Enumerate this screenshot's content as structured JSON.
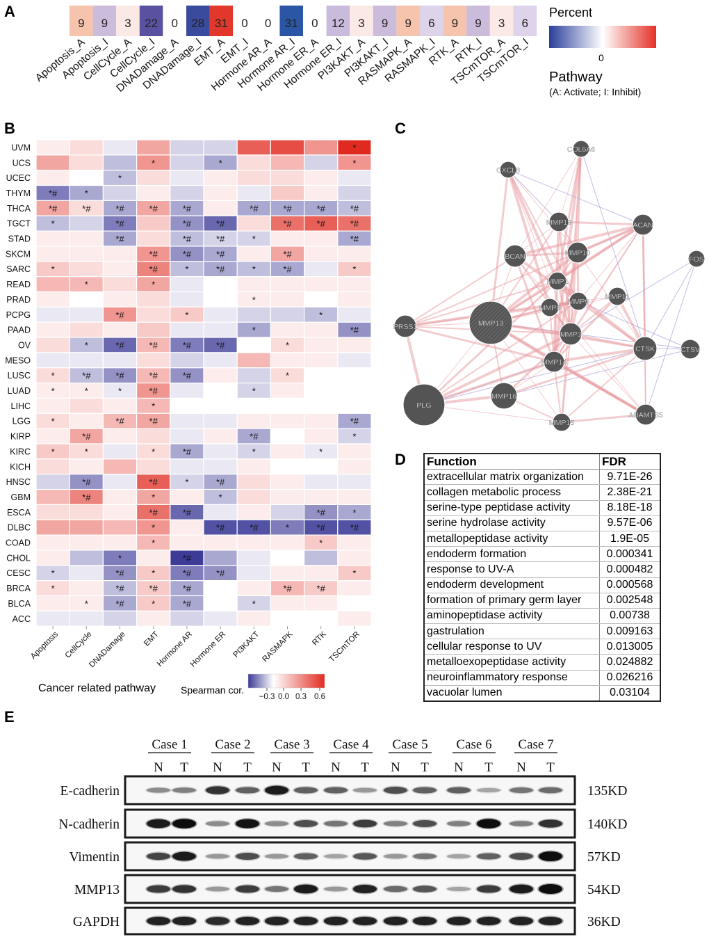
{
  "panels": {
    "A": "A",
    "B": "B",
    "C": "C",
    "D": "D",
    "E": "E"
  },
  "panel_a": {
    "labels": [
      "Apoptosis_A",
      "Apoptosis_I",
      "CellCycle_A",
      "CellCycle_I",
      "DNADamage_A",
      "DNADamage_I",
      "EMT_A",
      "EMT_I",
      "Hormone AR_A",
      "Hormone AR_I",
      "Hormone ER_A",
      "Hormone ER_I",
      "PI3KAKT_A",
      "PI3KAKT_I",
      "RASMAPK_A",
      "RASMAPK_I",
      "RTK_A",
      "RTK_I",
      "TSCmTOR_A",
      "TSCmTOR_I"
    ],
    "values": [
      9,
      9,
      3,
      22,
      0,
      28,
      31,
      0,
      0,
      31,
      0,
      12,
      3,
      9,
      9,
      6,
      9,
      9,
      3,
      6
    ],
    "colors": [
      "#f6c4ad",
      "#cbbcdc",
      "#fbe9e6",
      "#5a52a0",
      "#ffffff",
      "#3a4a9c",
      "#e2372b",
      "#ffffff",
      "#ffffff",
      "#2b55a5",
      "#ffffff",
      "#c9bbdc",
      "#fbe9e6",
      "#cbbcdc",
      "#f6c4ad",
      "#ddd3ea",
      "#f6c4ad",
      "#cbbcdc",
      "#fbe9e6",
      "#ddd3ea"
    ],
    "legend_title": "Percent",
    "legend_zero": "0",
    "pathway_title": "Pathway",
    "pathway_note": "(A: Activate; I: Inhibit)"
  },
  "panel_b": {
    "rows": [
      "UVM",
      "UCS",
      "UCEC",
      "THYM",
      "THCA",
      "TGCT",
      "STAD",
      "SKCM",
      "SARC",
      "READ",
      "PRAD",
      "PCPG",
      "PAAD",
      "OV",
      "MESO",
      "LUSC",
      "LUAD",
      "LIHC",
      "LGG",
      "KIRP",
      "KIRC",
      "KICH",
      "HNSC",
      "GBM",
      "ESCA",
      "DLBC",
      "COAD",
      "CHOL",
      "CESC",
      "BRCA",
      "BLCA",
      "ACC"
    ],
    "cols": [
      "Apoptosis",
      "CellCycle",
      "DNADamage",
      "EMT",
      "Hormone AR",
      "Hormone ER",
      "PI3KAKT",
      "RASMAPK",
      "RTK",
      "TSCmTOR"
    ],
    "values": [
      [
        0.05,
        0.1,
        -0.05,
        0.25,
        -0.1,
        -0.1,
        0.45,
        0.5,
        0.3,
        0.6
      ],
      [
        0.25,
        0.1,
        -0.15,
        0.3,
        -0.1,
        -0.2,
        0.1,
        0.2,
        -0.1,
        0.3
      ],
      [
        0.05,
        0.0,
        -0.15,
        0.1,
        -0.05,
        0.05,
        0.1,
        0.1,
        0.05,
        -0.05
      ],
      [
        -0.3,
        -0.2,
        -0.1,
        0.05,
        -0.1,
        0.05,
        -0.05,
        0.15,
        0.05,
        -0.1
      ],
      [
        0.25,
        0.1,
        -0.2,
        0.25,
        -0.2,
        0.05,
        -0.2,
        -0.2,
        -0.2,
        -0.15
      ],
      [
        -0.15,
        -0.1,
        -0.3,
        0.15,
        -0.25,
        -0.35,
        0.1,
        0.4,
        0.45,
        0.4
      ],
      [
        0.05,
        0.05,
        -0.2,
        0.1,
        -0.15,
        -0.1,
        -0.1,
        0.05,
        0.05,
        -0.2
      ],
      [
        0.05,
        0.05,
        0.05,
        0.3,
        -0.25,
        -0.2,
        0.05,
        0.25,
        0.05,
        0.05
      ],
      [
        0.15,
        0.1,
        0.05,
        0.35,
        -0.15,
        -0.2,
        -0.15,
        -0.2,
        -0.05,
        0.15
      ],
      [
        0.2,
        0.2,
        0.1,
        0.25,
        -0.05,
        0.0,
        0.05,
        0.05,
        0.05,
        0.05
      ],
      [
        0.05,
        0.0,
        0.05,
        0.1,
        -0.05,
        0.0,
        0.05,
        0.05,
        0.0,
        0.05
      ],
      [
        -0.05,
        -0.05,
        0.3,
        0.1,
        0.15,
        -0.05,
        -0.1,
        -0.1,
        -0.15,
        -0.05
      ],
      [
        0.05,
        0.1,
        0.05,
        0.15,
        -0.05,
        -0.05,
        -0.2,
        0.05,
        0.05,
        -0.25
      ],
      [
        0.1,
        -0.15,
        -0.35,
        0.2,
        -0.3,
        -0.35,
        0.0,
        0.1,
        0.05,
        0.05
      ],
      [
        -0.05,
        -0.05,
        -0.05,
        0.1,
        -0.1,
        -0.05,
        0.2,
        0.05,
        0.05,
        -0.05
      ],
      [
        0.1,
        -0.15,
        -0.25,
        0.2,
        -0.25,
        0.05,
        -0.1,
        0.1,
        0.0,
        0.0
      ],
      [
        0.05,
        0.05,
        -0.05,
        0.3,
        -0.05,
        0.0,
        -0.1,
        0.05,
        0.0,
        0.0
      ],
      [
        0.05,
        0.1,
        0.05,
        0.2,
        0.0,
        0.0,
        0.0,
        0.0,
        0.0,
        0.0
      ],
      [
        0.1,
        0.05,
        0.2,
        0.25,
        -0.05,
        -0.05,
        0.05,
        0.05,
        0.05,
        -0.2
      ],
      [
        0.05,
        0.25,
        0.05,
        0.1,
        -0.05,
        0.05,
        -0.2,
        0.0,
        0.05,
        -0.1
      ],
      [
        0.15,
        0.1,
        -0.05,
        0.1,
        -0.2,
        -0.05,
        -0.1,
        0.05,
        -0.05,
        0.05
      ],
      [
        0.1,
        0.05,
        0.2,
        0.1,
        -0.05,
        -0.05,
        0.05,
        0.0,
        0.0,
        0.05
      ],
      [
        -0.1,
        -0.25,
        -0.05,
        0.45,
        -0.1,
        -0.2,
        0.1,
        0.05,
        -0.05,
        -0.05
      ],
      [
        0.2,
        0.35,
        0.05,
        0.25,
        0.05,
        -0.15,
        0.1,
        0.05,
        0.05,
        0.05
      ],
      [
        0.1,
        0.1,
        0.05,
        0.4,
        -0.35,
        -0.05,
        0.05,
        -0.1,
        -0.25,
        -0.2
      ],
      [
        0.25,
        0.25,
        0.2,
        0.3,
        0.05,
        -0.4,
        -0.4,
        -0.3,
        -0.4,
        -0.4
      ],
      [
        0.05,
        0.05,
        0.05,
        0.2,
        0.05,
        0.05,
        0.05,
        0.05,
        0.15,
        0.05
      ],
      [
        0.05,
        -0.15,
        -0.3,
        0.05,
        -0.45,
        -0.2,
        -0.05,
        0.0,
        -0.15,
        0.05
      ],
      [
        -0.1,
        -0.05,
        -0.25,
        0.15,
        -0.3,
        -0.25,
        -0.05,
        0.05,
        0.05,
        0.15
      ],
      [
        0.1,
        0.05,
        -0.15,
        0.15,
        -0.2,
        0.0,
        0.05,
        0.2,
        0.15,
        0.05
      ],
      [
        0.05,
        0.05,
        -0.2,
        0.15,
        -0.2,
        0.0,
        -0.1,
        0.05,
        0.05,
        0.0
      ],
      [
        -0.05,
        -0.05,
        -0.1,
        0.05,
        -0.1,
        -0.05,
        0.05,
        0.0,
        0.0,
        0.05
      ]
    ],
    "marks": [
      [
        "",
        "",
        "",
        "",
        "",
        "",
        "",
        "",
        "",
        "*"
      ],
      [
        "",
        "",
        "",
        "*",
        "",
        "*",
        "",
        "",
        "",
        "*"
      ],
      [
        "",
        "",
        "*",
        "",
        "",
        "",
        "",
        "",
        "",
        ""
      ],
      [
        "*#",
        "*",
        "",
        "",
        "",
        "",
        "",
        "",
        "",
        ""
      ],
      [
        "*#",
        "*#",
        "*#",
        "*#",
        "*#",
        "",
        "*#",
        "*#",
        "*#",
        "*#"
      ],
      [
        "*",
        "",
        "*#",
        "",
        "*#",
        "*#",
        "",
        "*#",
        "*#",
        "*#"
      ],
      [
        "",
        "",
        "*#",
        "",
        "*#",
        "*#",
        "*",
        "",
        "",
        "*#"
      ],
      [
        "",
        "",
        "",
        "*#",
        "*#",
        "*#",
        "",
        "*#",
        "",
        ""
      ],
      [
        "*",
        "",
        "",
        "*#",
        "*",
        "*#",
        "*",
        "*#",
        "",
        "*"
      ],
      [
        "",
        "*",
        "",
        "*",
        "",
        "",
        "",
        "",
        "",
        ""
      ],
      [
        "",
        "",
        "",
        "",
        "",
        "",
        "*",
        "",
        "",
        ""
      ],
      [
        "",
        "",
        "*#",
        "",
        "*",
        "",
        "",
        "",
        "*",
        ""
      ],
      [
        "",
        "",
        "",
        "",
        "",
        "",
        "*",
        "",
        "",
        "*#"
      ],
      [
        "",
        "*",
        "*#",
        "*#",
        "*#",
        "*#",
        "",
        "*",
        "",
        ""
      ],
      [
        "",
        "",
        "",
        "",
        "",
        "",
        "",
        "",
        "",
        ""
      ],
      [
        "*",
        "*#",
        "*#",
        "*#",
        "*#",
        "",
        "",
        "*",
        "",
        ""
      ],
      [
        "*",
        "*",
        "*",
        "*#",
        "",
        "",
        "*",
        "",
        "",
        ""
      ],
      [
        "",
        "",
        "",
        "*",
        "",
        "",
        "",
        "",
        "",
        ""
      ],
      [
        "*",
        "",
        "*#",
        "*#",
        "",
        "",
        "",
        "",
        "",
        "*#"
      ],
      [
        "",
        "*#",
        "",
        "",
        "",
        "",
        "*#",
        "",
        "",
        "*"
      ],
      [
        "*",
        "*",
        "",
        "*",
        "*#",
        "",
        "*",
        "",
        "*",
        ""
      ],
      [
        "",
        "",
        "",
        "",
        "",
        "",
        "",
        "",
        "",
        ""
      ],
      [
        "",
        "*#",
        "",
        "*#",
        "*",
        "*#",
        "",
        "",
        "",
        ""
      ],
      [
        "",
        "*#",
        "",
        "*",
        "",
        "*",
        "",
        "",
        "",
        ""
      ],
      [
        "",
        "",
        "",
        "*#",
        "*#",
        "",
        "",
        "",
        "*#",
        "*"
      ],
      [
        "",
        "",
        "",
        "*",
        "",
        "*#",
        "*#",
        "*",
        "*#",
        "*#"
      ],
      [
        "",
        "",
        "",
        "*",
        "",
        "",
        "",
        "",
        "*",
        ""
      ],
      [
        "",
        "",
        "*",
        "",
        "*#",
        "",
        "",
        "",
        "",
        ""
      ],
      [
        "*",
        "",
        "*#",
        "*",
        "*#",
        "*#",
        "",
        "",
        "",
        "*"
      ],
      [
        "*",
        "",
        "*#",
        "*#",
        "*#",
        "",
        "",
        "*#",
        "*#",
        ""
      ],
      [
        "",
        "*",
        "*#",
        "*",
        "*#",
        "",
        "*",
        "",
        "",
        ""
      ],
      [
        "",
        "",
        "",
        "",
        "",
        "",
        "",
        "",
        "",
        ""
      ]
    ],
    "xaxis_title": "Cancer related pathway",
    "legend_title": "Spearman cor.",
    "legend_ticks": [
      "−0.3",
      "0.0",
      "0.3",
      "0.6"
    ]
  },
  "panel_c": {
    "nodes": [
      "COL6A6",
      "CXCL8",
      "MMP19",
      "ACAN",
      "FOS",
      "BCAN",
      "MMP10",
      "MMP1",
      "MMP11",
      "MMP8",
      "MMP9",
      "PRSS1",
      "MMP13",
      "MMP3",
      "CTSK",
      "CTSV",
      "MMP14",
      "PLG",
      "MMP16",
      "ADAMTS5",
      "MMP15"
    ]
  },
  "panel_d": {
    "headers": [
      "Function",
      "FDR"
    ],
    "rows": [
      [
        "extracellular matrix organization",
        "9.71E-26"
      ],
      [
        "collagen metabolic process",
        "2.38E-21"
      ],
      [
        "serine-type peptidase activity",
        "8.18E-18"
      ],
      [
        "serine hydrolase activity",
        "9.57E-06"
      ],
      [
        "metallopeptidase activity",
        "1.9E-05"
      ],
      [
        "endoderm formation",
        "0.000341"
      ],
      [
        "response to UV-A",
        "0.000482"
      ],
      [
        "endoderm development",
        "0.000568"
      ],
      [
        "formation of primary germ layer",
        "0.002548"
      ],
      [
        "aminopeptidase activity",
        "0.00738"
      ],
      [
        "gastrulation",
        "0.009163"
      ],
      [
        "cellular response to UV",
        "0.013005"
      ],
      [
        "metalloexopeptidase activity",
        "0.024882"
      ],
      [
        "neuroinflammatory response",
        "0.026216"
      ],
      [
        "vacuolar lumen",
        "0.03104"
      ]
    ]
  },
  "panel_e": {
    "cases": [
      "Case 1",
      "Case 2",
      "Case 3",
      "Case 4",
      "Case 5",
      "Case 6",
      "Case 7"
    ],
    "lane_labels": [
      "N",
      "T"
    ],
    "proteins": [
      {
        "name": "E-cadherin",
        "kd": "135KD",
        "intensity": [
          0.25,
          0.3,
          0.7,
          0.45,
          0.85,
          0.45,
          0.45,
          0.2,
          0.55,
          0.45,
          0.45,
          0.15,
          0.35,
          0.4
        ]
      },
      {
        "name": "N-cadherin",
        "kd": "140KD",
        "intensity": [
          0.85,
          0.95,
          0.25,
          0.9,
          0.25,
          0.55,
          0.35,
          0.65,
          0.3,
          0.55,
          0.3,
          0.95,
          0.3,
          0.7
        ]
      },
      {
        "name": "Vimentin",
        "kd": "57KD",
        "intensity": [
          0.6,
          0.85,
          0.2,
          0.55,
          0.2,
          0.45,
          0.15,
          0.5,
          0.2,
          0.35,
          0.15,
          0.45,
          0.55,
          1.0
        ]
      },
      {
        "name": "MMP13",
        "kd": "54KD",
        "intensity": [
          0.65,
          0.7,
          0.2,
          0.65,
          0.35,
          0.85,
          0.2,
          0.8,
          0.4,
          0.5,
          0.15,
          0.65,
          0.85,
          1.0
        ]
      },
      {
        "name": "GAPDH",
        "kd": "36KD",
        "intensity": [
          0.8,
          0.8,
          0.75,
          0.8,
          0.8,
          0.8,
          0.8,
          0.8,
          0.8,
          0.8,
          0.8,
          0.8,
          0.8,
          0.8
        ]
      }
    ]
  }
}
